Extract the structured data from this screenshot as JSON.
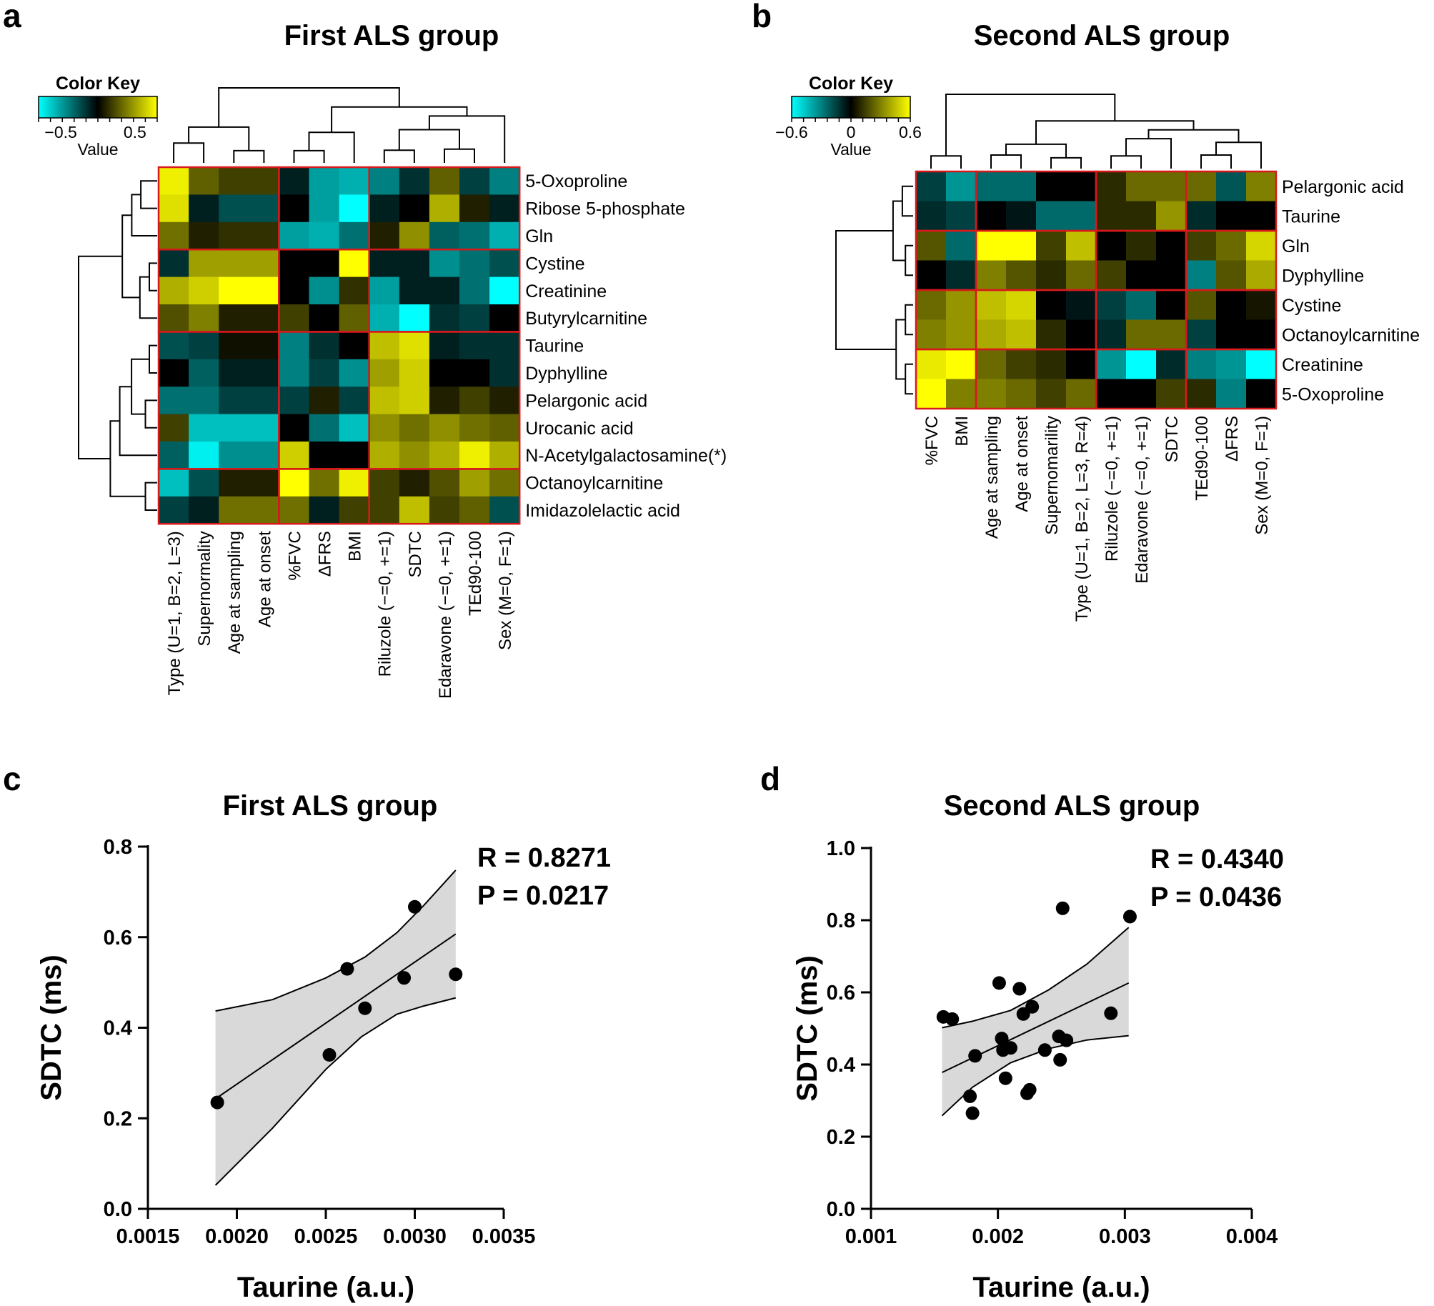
{
  "panels": {
    "a": {
      "letter": "a",
      "title": "First ALS group"
    },
    "b": {
      "letter": "b",
      "title": "Second ALS group"
    },
    "c": {
      "letter": "c",
      "title": "First ALS group"
    },
    "d": {
      "letter": "d",
      "title": "Second ALS group"
    }
  },
  "colors": {
    "negative": "#00FFFF",
    "zero": "#000000",
    "positive": "#FFFF00",
    "block_border": "#D7191C",
    "confidence_band": "#D9D9D9",
    "points": "#000000"
  },
  "chart_data": [
    {
      "id": "a",
      "type": "heatmap",
      "title": "First ALS group",
      "color_key": {
        "title": "Color Key",
        "label": "Value",
        "range": [
          -0.8,
          0.8
        ],
        "ticks": [
          -0.5,
          0.5
        ],
        "tick_labels": [
          "−0.5",
          "0.5"
        ]
      },
      "rows": [
        "5-Oxoproline",
        "Ribose 5-phosphate",
        "Gln",
        "Cystine",
        "Creatinine",
        "Butyrylcarnitine",
        "Taurine",
        "Dyphylline",
        "Pelargonic acid",
        "Urocanic acid",
        "N-Acetylgalactosamine(*)",
        "Octanoylcarnitine",
        "Imidazolelactic acid"
      ],
      "columns": [
        "Type (U=1, B=2, L=3)",
        "Supernormality",
        "Age at sampling",
        "Age at onset",
        "%FVC",
        "ΔFRS",
        "BMI",
        "Riluzole (−=0, +=1)",
        "SDTC",
        "Edaravone (−=0, +=1)",
        "TEd90-100",
        "Sex (M=0, F=1)"
      ],
      "row_groups": [
        3,
        3,
        5,
        2
      ],
      "column_groups": [
        4,
        3,
        5
      ],
      "values": [
        [
          0.75,
          0.3,
          0.2,
          0.2,
          -0.1,
          -0.5,
          -0.55,
          -0.4,
          -0.15,
          0.3,
          -0.2,
          -0.4
        ],
        [
          0.7,
          -0.1,
          -0.25,
          -0.25,
          0.0,
          -0.5,
          -0.8,
          -0.1,
          0.0,
          0.55,
          0.1,
          -0.1
        ],
        [
          0.35,
          0.1,
          0.15,
          0.15,
          -0.5,
          -0.55,
          -0.35,
          0.1,
          0.45,
          -0.3,
          -0.35,
          -0.55
        ],
        [
          -0.15,
          0.5,
          0.5,
          0.5,
          0.0,
          0.0,
          0.85,
          -0.1,
          -0.1,
          -0.45,
          -0.35,
          -0.25
        ],
        [
          0.55,
          0.65,
          0.85,
          0.85,
          0.0,
          -0.45,
          0.15,
          -0.5,
          -0.1,
          -0.1,
          -0.35,
          -0.8
        ],
        [
          0.25,
          0.4,
          0.1,
          0.1,
          0.2,
          0.0,
          0.3,
          -0.55,
          -0.8,
          -0.15,
          -0.2,
          0.0
        ],
        [
          -0.25,
          -0.2,
          0.05,
          0.05,
          -0.4,
          -0.15,
          0.0,
          0.6,
          0.7,
          -0.1,
          -0.15,
          -0.15
        ],
        [
          0.0,
          -0.3,
          -0.1,
          -0.1,
          -0.4,
          -0.2,
          -0.45,
          0.5,
          0.65,
          0.0,
          0.0,
          -0.15
        ],
        [
          -0.35,
          -0.35,
          -0.2,
          -0.2,
          -0.2,
          0.1,
          -0.2,
          0.6,
          0.65,
          0.1,
          0.2,
          0.1
        ],
        [
          0.2,
          -0.6,
          -0.6,
          -0.6,
          0.0,
          -0.35,
          -0.6,
          0.45,
          0.35,
          0.45,
          0.35,
          0.3
        ],
        [
          -0.3,
          -0.75,
          -0.45,
          -0.45,
          0.65,
          0.0,
          0.0,
          0.55,
          0.45,
          0.55,
          0.75,
          0.55
        ],
        [
          -0.6,
          -0.25,
          0.1,
          0.1,
          0.9,
          0.35,
          0.75,
          0.2,
          0.1,
          0.25,
          0.5,
          0.35
        ],
        [
          -0.2,
          -0.1,
          0.35,
          0.35,
          0.35,
          -0.1,
          0.2,
          0.2,
          0.6,
          0.2,
          0.3,
          -0.25
        ]
      ]
    },
    {
      "id": "b",
      "type": "heatmap",
      "title": "Second ALS group",
      "color_key": {
        "title": "Color Key",
        "label": "Value",
        "range": [
          -0.6,
          0.6
        ],
        "ticks": [
          -0.6,
          0,
          0.6
        ],
        "tick_labels": [
          "−0.6",
          "0",
          "0.6"
        ]
      },
      "rows": [
        "Pelargonic acid",
        "Taurine",
        "Gln",
        "Dyphylline",
        "Cystine",
        "Octanoylcarnitine",
        "Creatinine",
        "5-Oxoproline"
      ],
      "columns": [
        "%FVC",
        "BMI",
        "Age at sampling",
        "Age at onset",
        "Supernomarility",
        "Type (U=1, B=2, L=3, R=4)",
        "Riluzole (−=0, +=1)",
        "Edaravone (−=0, +=1)",
        "SDTC",
        "TEd90-100",
        "ΔFRS",
        "Sex (M=0, F=1)"
      ],
      "row_groups": [
        2,
        2,
        2,
        2
      ],
      "column_groups": [
        2,
        4,
        3,
        3
      ],
      "values": [
        [
          -0.15,
          -0.35,
          -0.25,
          -0.25,
          0.0,
          0.0,
          0.1,
          0.25,
          0.25,
          0.25,
          -0.2,
          0.3
        ],
        [
          -0.1,
          -0.15,
          0.0,
          -0.05,
          -0.25,
          -0.25,
          0.1,
          0.1,
          0.35,
          -0.1,
          0.0,
          0.0
        ],
        [
          0.2,
          -0.25,
          0.65,
          0.65,
          0.15,
          0.45,
          0.0,
          0.1,
          0.0,
          0.15,
          0.25,
          0.5
        ],
        [
          0.0,
          -0.1,
          0.3,
          0.2,
          0.1,
          0.25,
          0.15,
          0.0,
          0.0,
          -0.3,
          0.2,
          0.4
        ],
        [
          0.25,
          0.35,
          0.45,
          0.5,
          0.0,
          -0.05,
          -0.15,
          -0.25,
          0.0,
          0.2,
          0.0,
          0.05
        ],
        [
          0.3,
          0.35,
          0.4,
          0.45,
          0.1,
          0.0,
          -0.1,
          0.25,
          0.25,
          -0.15,
          0.0,
          0.0
        ],
        [
          0.55,
          0.6,
          0.25,
          0.15,
          0.1,
          0.0,
          -0.35,
          -0.6,
          -0.1,
          -0.3,
          -0.35,
          -0.65
        ],
        [
          0.6,
          0.3,
          0.3,
          0.25,
          0.15,
          0.25,
          0.0,
          0.0,
          0.15,
          0.1,
          -0.3,
          0.0
        ]
      ]
    },
    {
      "id": "c",
      "type": "scatter",
      "title": "First ALS group",
      "xlabel": "Taurine (a.u.)",
      "ylabel": "SDTC (ms)",
      "xlim": [
        0.0015,
        0.0035
      ],
      "ylim": [
        0.0,
        0.8
      ],
      "xticks": [
        0.0015,
        0.002,
        0.0025,
        0.003,
        0.0035
      ],
      "xtick_labels": [
        "0.0015",
        "0.0020",
        "0.0025",
        "0.0030",
        "0.0035"
      ],
      "yticks": [
        0.0,
        0.2,
        0.4,
        0.6,
        0.8
      ],
      "ytick_labels": [
        "0.0",
        "0.2",
        "0.4",
        "0.6",
        "0.8"
      ],
      "annotations": [
        "R = 0.8271",
        "P = 0.0217"
      ],
      "points": [
        [
          0.00189,
          0.235
        ],
        [
          0.00252,
          0.34
        ],
        [
          0.00262,
          0.53
        ],
        [
          0.00272,
          0.443
        ],
        [
          0.00294,
          0.51
        ],
        [
          0.003,
          0.667
        ],
        [
          0.00323,
          0.518
        ]
      ],
      "fit_line": [
        [
          0.00188,
          0.243
        ],
        [
          0.00323,
          0.607
        ]
      ],
      "band_upper": [
        [
          0.00188,
          0.437
        ],
        [
          0.0022,
          0.462
        ],
        [
          0.0025,
          0.51
        ],
        [
          0.00272,
          0.556
        ],
        [
          0.0029,
          0.61
        ],
        [
          0.00305,
          0.67
        ],
        [
          0.00323,
          0.748
        ]
      ],
      "band_lower": [
        [
          0.00188,
          0.052
        ],
        [
          0.0022,
          0.178
        ],
        [
          0.0025,
          0.308
        ],
        [
          0.0027,
          0.38
        ],
        [
          0.0029,
          0.43
        ],
        [
          0.00305,
          0.448
        ],
        [
          0.00323,
          0.466
        ]
      ]
    },
    {
      "id": "d",
      "type": "scatter",
      "title": "Second ALS group",
      "xlabel": "Taurine (a.u.)",
      "ylabel": "SDTC (ms)",
      "xlim": [
        0.001,
        0.004
      ],
      "ylim": [
        0.0,
        1.0
      ],
      "xticks": [
        0.001,
        0.002,
        0.003,
        0.004
      ],
      "xtick_labels": [
        "0.001",
        "0.002",
        "0.003",
        "0.004"
      ],
      "yticks": [
        0.0,
        0.2,
        0.4,
        0.6,
        0.8,
        1.0
      ],
      "ytick_labels": [
        "0.0",
        "0.2",
        "0.4",
        "0.6",
        "0.8",
        "1.0"
      ],
      "annotations": [
        "R = 0.4340",
        "P = 0.0436"
      ],
      "points": [
        [
          0.00157,
          0.532
        ],
        [
          0.00164,
          0.526
        ],
        [
          0.00178,
          0.312
        ],
        [
          0.0018,
          0.265
        ],
        [
          0.00182,
          0.424
        ],
        [
          0.00201,
          0.626
        ],
        [
          0.00203,
          0.472
        ],
        [
          0.00204,
          0.44
        ],
        [
          0.00206,
          0.362
        ],
        [
          0.0021,
          0.446
        ],
        [
          0.00217,
          0.61
        ],
        [
          0.0022,
          0.54
        ],
        [
          0.00223,
          0.32
        ],
        [
          0.00225,
          0.33
        ],
        [
          0.00227,
          0.56
        ],
        [
          0.00237,
          0.44
        ],
        [
          0.00248,
          0.478
        ],
        [
          0.00249,
          0.413
        ],
        [
          0.00251,
          0.833
        ],
        [
          0.00254,
          0.467
        ],
        [
          0.00289,
          0.542
        ],
        [
          0.00304,
          0.81
        ]
      ],
      "fit_line": [
        [
          0.00156,
          0.378
        ],
        [
          0.00303,
          0.626
        ]
      ],
      "band_upper": [
        [
          0.00156,
          0.502
        ],
        [
          0.0018,
          0.52
        ],
        [
          0.0021,
          0.55
        ],
        [
          0.0024,
          0.607
        ],
        [
          0.0027,
          0.678
        ],
        [
          0.00303,
          0.78
        ]
      ],
      "band_lower": [
        [
          0.00156,
          0.258
        ],
        [
          0.0018,
          0.337
        ],
        [
          0.0021,
          0.405
        ],
        [
          0.0024,
          0.444
        ],
        [
          0.0027,
          0.468
        ],
        [
          0.00303,
          0.48
        ]
      ]
    }
  ]
}
